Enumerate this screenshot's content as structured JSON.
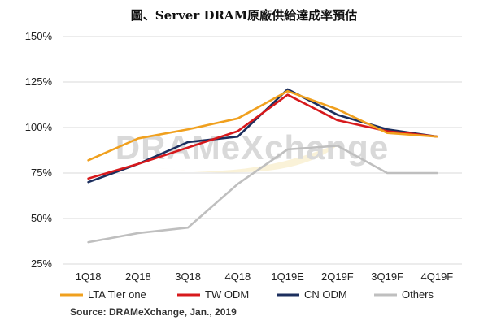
{
  "chart_data": {
    "type": "line",
    "title": "圖、Server DRAM原廠供給達成率預估",
    "categories": [
      "1Q18",
      "2Q18",
      "3Q18",
      "4Q18",
      "1Q19E",
      "2Q19F",
      "3Q19F",
      "4Q19F"
    ],
    "yticks": [
      "25%",
      "50%",
      "75%",
      "100%",
      "125%",
      "150%"
    ],
    "ylim": [
      25,
      150
    ],
    "grid": true,
    "legend_position": "bottom",
    "series": [
      {
        "name": "LTA Tier one",
        "color": "#f0a01e",
        "values": [
          82,
          94,
          99,
          105,
          120,
          110,
          97,
          95
        ]
      },
      {
        "name": "TW ODM",
        "color": "#d7191c",
        "values": [
          72,
          80,
          89,
          98,
          118,
          104,
          98,
          95
        ]
      },
      {
        "name": "CN ODM",
        "color": "#1c2f5e",
        "values": [
          70,
          80,
          92,
          95,
          121,
          107,
          99,
          95
        ]
      },
      {
        "name": "Others",
        "color": "#bfbfbf",
        "values": [
          37,
          42,
          45,
          69,
          88,
          90,
          75,
          75
        ]
      }
    ],
    "watermark": "DRAMeXchange",
    "source": "Source: DRAMeXchange, Jan., 2019"
  }
}
